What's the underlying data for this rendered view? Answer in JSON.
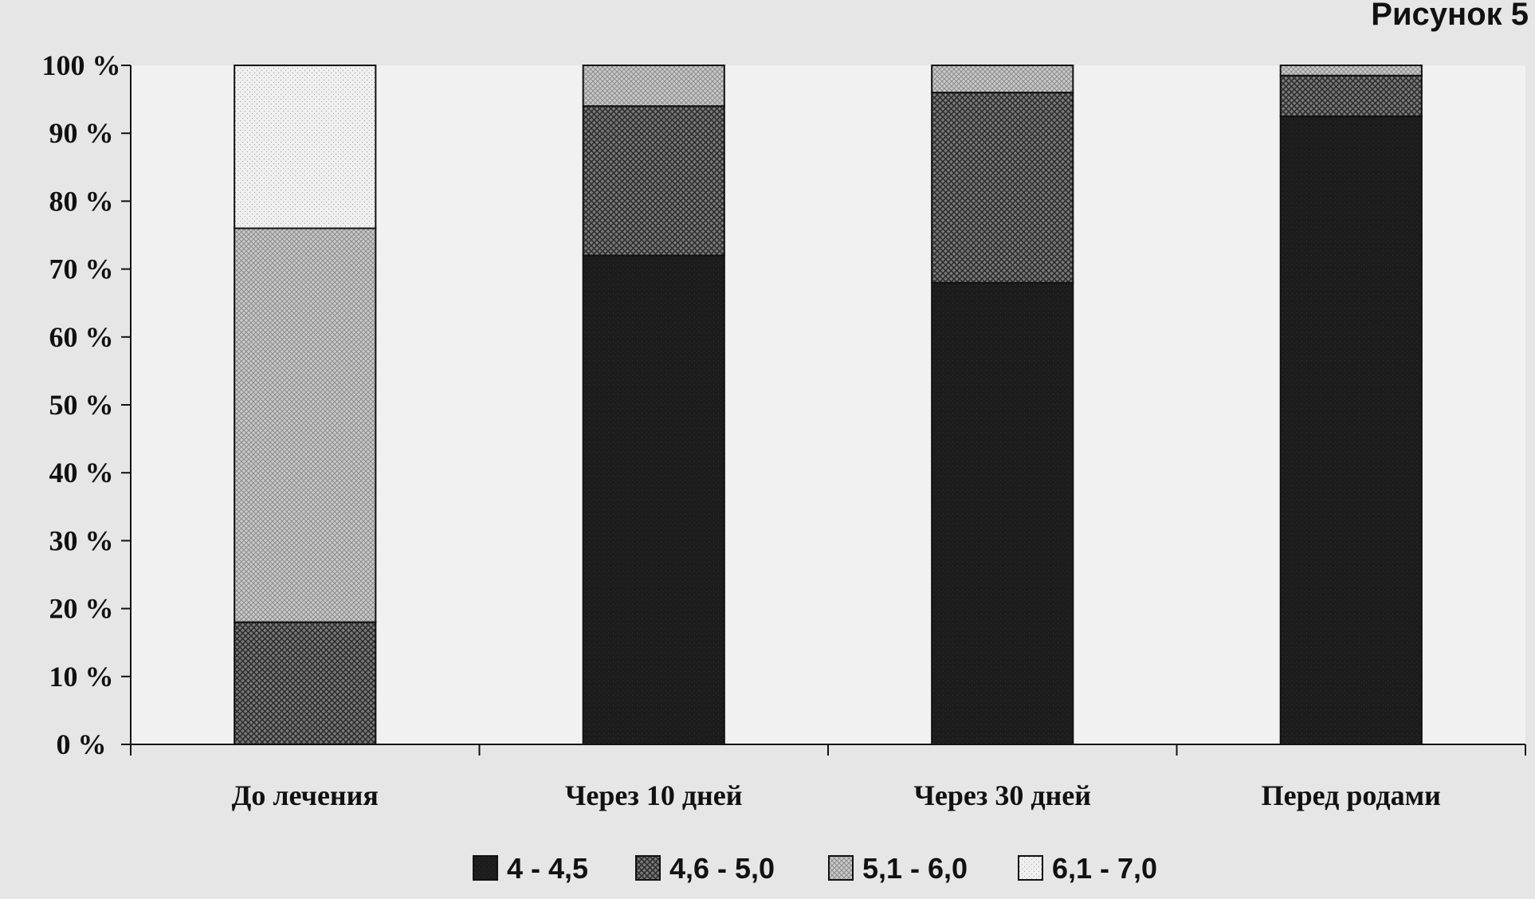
{
  "figure_label": "Рисунок 5",
  "chart_data": {
    "type": "bar",
    "stacked": true,
    "categories": [
      "До лечения",
      "Через 10 дней",
      "Через 30 дней",
      "Перед родами"
    ],
    "series": [
      {
        "name": "4 - 4,5",
        "values": [
          0,
          72,
          68,
          92.5
        ],
        "color": "#1a1a1a"
      },
      {
        "name": "4,6 - 5,0",
        "values": [
          18,
          22,
          28,
          6
        ],
        "color": "#5a5a5a"
      },
      {
        "name": "5,1 - 6,0",
        "values": [
          58,
          6,
          4,
          1.5
        ],
        "color": "#b4b4b4"
      },
      {
        "name": "6,1 - 7,0",
        "values": [
          24,
          0,
          0,
          0
        ],
        "color": "#f2f2f2"
      }
    ],
    "ylim": [
      0,
      100
    ],
    "yticks": [
      "0 %",
      "10 %",
      "20 %",
      "30 %",
      "40 %",
      "50 %",
      "60 %",
      "70 %",
      "80 %",
      "90 %",
      "100 %"
    ],
    "title": "",
    "xlabel": "",
    "ylabel": "",
    "grid": false,
    "legend_position": "bottom"
  }
}
